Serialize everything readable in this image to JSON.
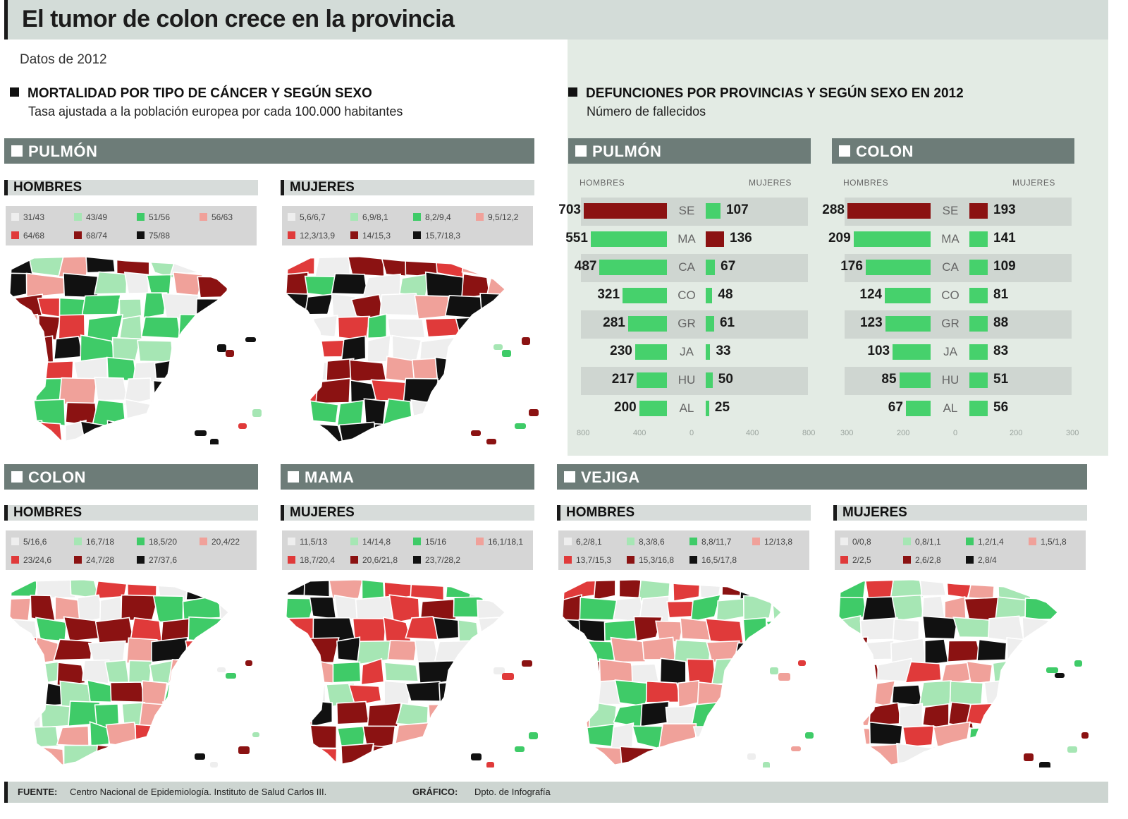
{
  "title": "El tumor de colon crece en la provincia",
  "subtitle": "Datos de 2012",
  "left_section": {
    "heading": "MORTALIDAD POR TIPO DE CÁNCER Y SEGÚN SEXO",
    "subheading": "Tasa ajustada a la población europea por cada 100.000 habitantes"
  },
  "right_section": {
    "heading": "DEFUNCIONES POR PROVINCIAS Y SEGÚN SEXO EN 2012",
    "subheading": "Número de fallecidos"
  },
  "colors": {
    "c1": "#eeeeee",
    "c2": "#a6e6b4",
    "c3": "#3fcb68",
    "c4": "#f0a19a",
    "c5": "#e03a3a",
    "c6": "#8b1212",
    "c7": "#111111",
    "bar_men": "#8b1212",
    "bar_green": "#46d16c"
  },
  "maps": [
    {
      "cancer": "PULMÓN",
      "sex": "HOMBRES",
      "legend": [
        "31/43",
        "43/49",
        "51/56",
        "56/63",
        "64/68",
        "68/74",
        "75/88"
      ],
      "seed": 3
    },
    {
      "sex": "MUJERES",
      "legend": [
        "5,6/6,7",
        "6,9/8,1",
        "8,2/9,4",
        "9,5/12,2",
        "12,3/13,9",
        "14/15,3",
        "15,7/18,3"
      ],
      "seed": 11
    },
    {
      "cancer": "COLON",
      "sex": "HOMBRES",
      "legend": [
        "5/16,6",
        "16,7/18",
        "18,5/20",
        "20,4/22",
        "23/24,6",
        "24,7/28",
        "27/37,6"
      ],
      "seed": 19
    },
    {
      "cancer": "MAMA",
      "sex": "MUJERES",
      "legend": [
        "11,5/13",
        "14/14,8",
        "15/16",
        "16,1/18,1",
        "18,7/20,4",
        "20,6/21,8",
        "23,7/28,2"
      ],
      "seed": 27
    },
    {
      "cancer": "VEJIGA",
      "sex": "HOMBRES",
      "legend": [
        "6,2/8,1",
        "8,3/8,6",
        "8,8/11,7",
        "12/13,8",
        "13,7/15,3",
        "15,3/16,8",
        "16,5/17,8"
      ],
      "seed": 35
    },
    {
      "sex": "MUJERES",
      "legend": [
        "0/0,8",
        "0,8/1,1",
        "1,2/1,4",
        "1,5/1,8",
        "2/2,5",
        "2,6/2,8",
        "2,8/4"
      ],
      "seed": 43
    }
  ],
  "chart_data": [
    {
      "type": "bar",
      "title": "PULMÓN",
      "column_labels": [
        "HOMBRES",
        "MUJERES"
      ],
      "categories": [
        "SE",
        "MA",
        "CA",
        "CO",
        "GR",
        "JA",
        "HU",
        "AL"
      ],
      "series": [
        {
          "name": "HOMBRES",
          "values": [
            703,
            551,
            487,
            321,
            281,
            230,
            217,
            200
          ]
        },
        {
          "name": "MUJERES",
          "values": [
            107,
            136,
            67,
            48,
            61,
            33,
            50,
            25
          ]
        }
      ],
      "highlight": {
        "HOMBRES": [
          0
        ],
        "MUJERES": [
          1
        ]
      },
      "axis_ticks": [
        "800",
        "400",
        "0",
        "400",
        "800"
      ],
      "xlim": [
        -800,
        800
      ]
    },
    {
      "type": "bar",
      "title": "COLON",
      "column_labels": [
        "HOMBRES",
        "MUJERES"
      ],
      "categories": [
        "SE",
        "MA",
        "CA",
        "CO",
        "GR",
        "JA",
        "HU",
        "AL"
      ],
      "series": [
        {
          "name": "HOMBRES",
          "values": [
            288,
            209,
            176,
            124,
            123,
            103,
            85,
            67
          ]
        },
        {
          "name": "MUJERES",
          "values": [
            193,
            141,
            109,
            81,
            88,
            83,
            51,
            56
          ]
        }
      ],
      "highlight": {
        "HOMBRES": [
          0
        ],
        "MUJERES": [
          0
        ]
      },
      "axis_ticks": [
        "300",
        "200",
        "0",
        "200",
        "300"
      ],
      "xlim": [
        -300,
        300
      ]
    }
  ],
  "footer": {
    "source_label": "FUENTE:",
    "source_text": "Centro Nacional de Epidemiología. Instituto de Salud Carlos III.",
    "graphic_label": "GRÁFICO:",
    "graphic_text": "Dpto. de Infografía"
  }
}
